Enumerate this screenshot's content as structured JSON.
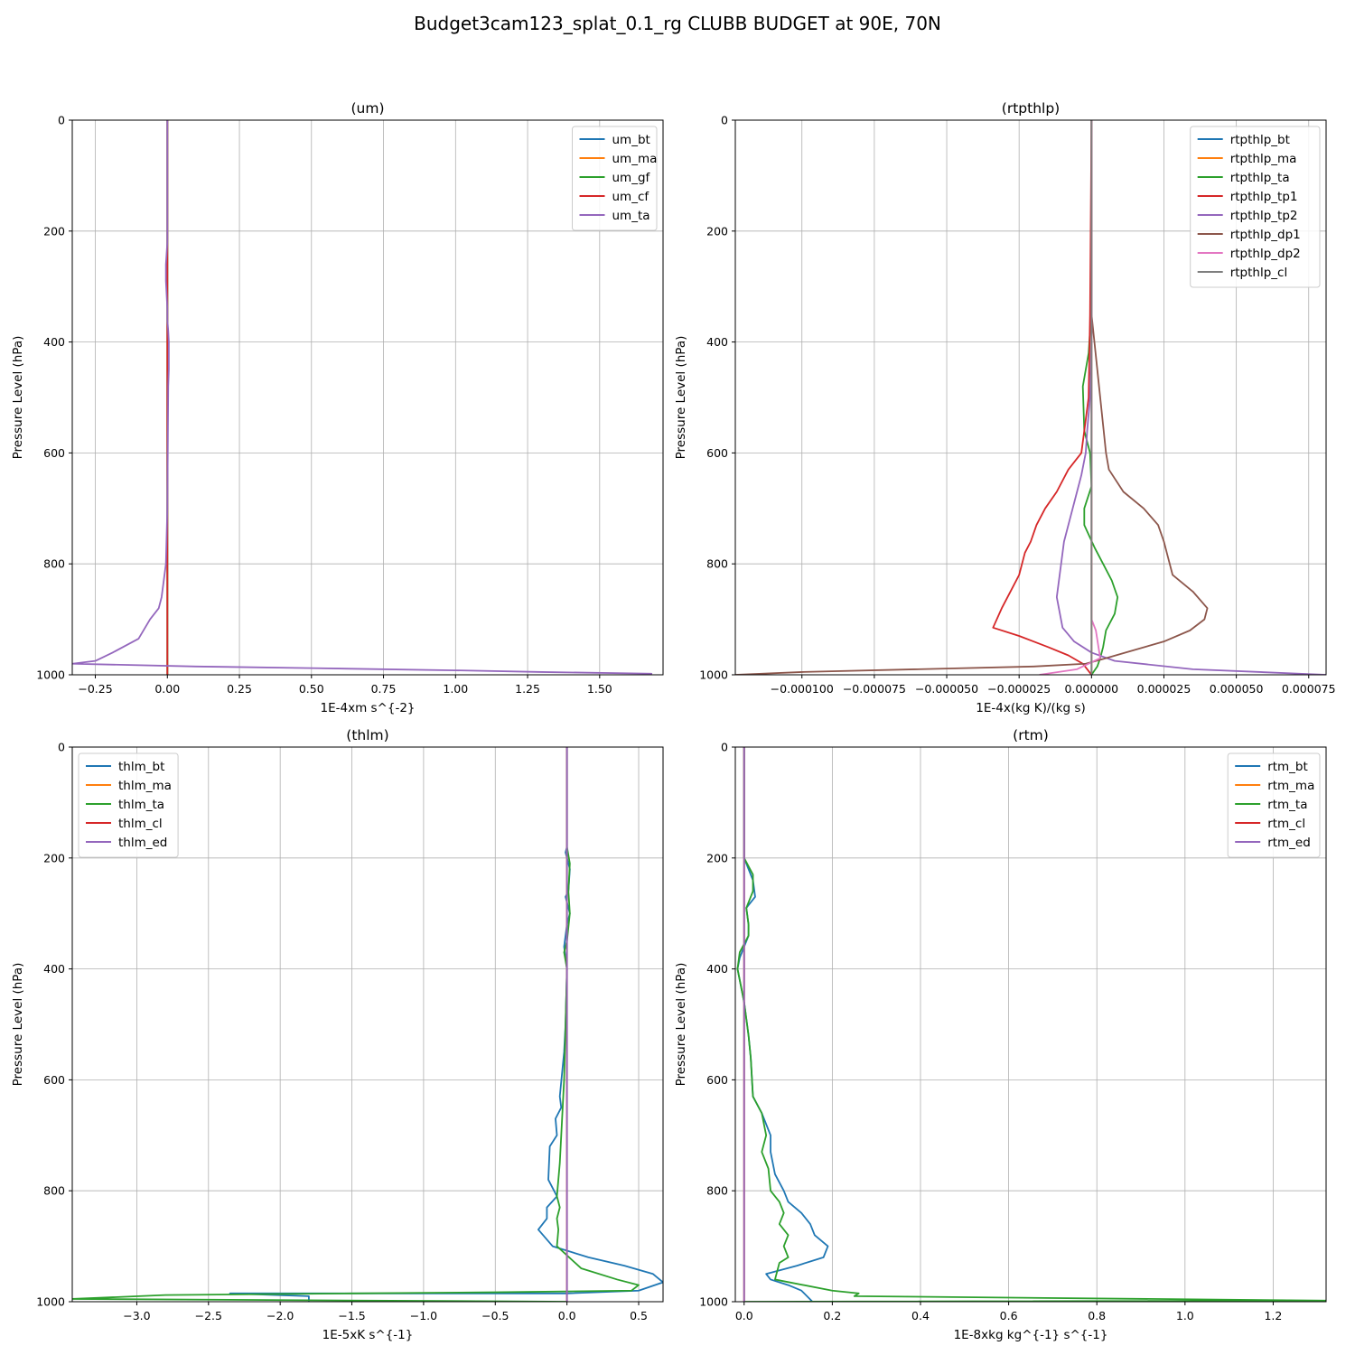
{
  "figure_title": "Budget3cam123_splat_0.1_rg CLUBB BUDGET at 90E, 70N",
  "chart_data": [
    {
      "type": "line",
      "title": "(um)",
      "xlabel": "1E-4xm s^{-2}",
      "ylabel": "Pressure Level (hPa)",
      "xlim": [
        -0.33,
        1.72
      ],
      "ylim": [
        1000,
        0
      ],
      "xticks": [
        -0.25,
        0.0,
        0.25,
        0.5,
        0.75,
        1.0,
        1.25,
        1.5
      ],
      "xtick_labels": [
        "−0.25",
        "0.00",
        "0.25",
        "0.50",
        "0.75",
        "1.00",
        "1.25",
        "1.50"
      ],
      "yticks": [
        0,
        200,
        400,
        600,
        800,
        1000
      ],
      "ytick_labels": [
        "0",
        "200",
        "400",
        "600",
        "800",
        "1000"
      ],
      "grid": true,
      "legend_position": "top-right",
      "series": [
        {
          "name": "um_bt",
          "color": "#1f77b4",
          "x": [
            0,
            0,
            0,
            0,
            0,
            0
          ],
          "y": [
            0,
            250,
            500,
            750,
            900,
            1000
          ]
        },
        {
          "name": "um_ma",
          "color": "#ff7f0e",
          "x": [
            0,
            0,
            0,
            0,
            0,
            0
          ],
          "y": [
            0,
            250,
            500,
            750,
            900,
            1000
          ]
        },
        {
          "name": "um_gf",
          "color": "#2ca02c",
          "x": [
            0,
            0,
            0,
            0,
            0,
            0
          ],
          "y": [
            0,
            250,
            500,
            750,
            900,
            1000
          ]
        },
        {
          "name": "um_cf",
          "color": "#d62728",
          "x": [
            0,
            0,
            0,
            0,
            0,
            0
          ],
          "y": [
            0,
            250,
            500,
            750,
            900,
            1000
          ]
        },
        {
          "name": "um_ta",
          "color": "#9467bd",
          "x": [
            0,
            0,
            -0.005,
            -0.005,
            0,
            0,
            0.003,
            0.005,
            0.005,
            0.003,
            0.002,
            0,
            -0.005,
            -0.02,
            -0.03,
            -0.06,
            -0.1,
            -0.19,
            -0.25,
            -0.33,
            -0.33,
            0.1,
            0.5,
            1.0,
            1.3,
            1.68,
            1.65
          ],
          "y": [
            0,
            220,
            260,
            290,
            340,
            360,
            380,
            400,
            450,
            480,
            550,
            700,
            800,
            860,
            880,
            900,
            935,
            960,
            975,
            980,
            980,
            985,
            988,
            992,
            995,
            998,
            1000
          ]
        }
      ]
    },
    {
      "type": "line",
      "title": "(rtpthlp)",
      "xlabel": "1E-4x(kg K)/(kg s)",
      "ylabel": "Pressure Level (hPa)",
      "xlim": [
        -0.000123,
        8.1e-05
      ],
      "ylim": [
        1000,
        0
      ],
      "xticks": [
        -0.0001,
        -7.5e-05,
        -5e-05,
        -2.5e-05,
        0.0,
        2.5e-05,
        5e-05,
        7.5e-05
      ],
      "xtick_labels": [
        "−0.000100",
        "−0.000075",
        "−0.000050",
        "−0.000025",
        "0.000000",
        "0.000025",
        "0.000050",
        "0.000075"
      ],
      "yticks": [
        0,
        200,
        400,
        600,
        800,
        1000
      ],
      "ytick_labels": [
        "0",
        "200",
        "400",
        "600",
        "800",
        "1000"
      ],
      "grid": true,
      "legend_position": "top-right",
      "series": [
        {
          "name": "rtpthlp_bt",
          "color": "#1f77b4",
          "x": [
            0,
            0,
            0,
            0,
            0
          ],
          "y": [
            0,
            250,
            500,
            750,
            1000
          ]
        },
        {
          "name": "rtpthlp_ma",
          "color": "#ff7f0e",
          "x": [
            0,
            0,
            0,
            0,
            0
          ],
          "y": [
            0,
            250,
            500,
            750,
            1000
          ]
        },
        {
          "name": "rtpthlp_ta",
          "color": "#2ca02c",
          "x": [
            0,
            0,
            -5e-07,
            -1e-06,
            -3e-06,
            -2.5e-06,
            -5e-07,
            0,
            -2.5e-06,
            -2.5e-06,
            1e-06,
            4e-06,
            7e-06,
            9e-06,
            8e-06,
            5e-06,
            4e-06,
            3e-06,
            2e-06,
            0
          ],
          "y": [
            0,
            300,
            380,
            420,
            480,
            560,
            600,
            660,
            700,
            730,
            770,
            800,
            830,
            860,
            890,
            920,
            950,
            970,
            985,
            1000
          ]
        },
        {
          "name": "rtpthlp_tp1",
          "color": "#d62728",
          "x": [
            0,
            -5e-07,
            -1e-06,
            -2.5e-06,
            -3.5e-06,
            -8e-06,
            -1.2e-05,
            -1.6e-05,
            -1.9e-05,
            -2.1e-05,
            -2.3e-05,
            -2.5e-05,
            -2.8e-05,
            -3.1e-05,
            -3.4e-05,
            -2.5e-05,
            -1.5e-05,
            -8e-06,
            -3e-06,
            0
          ],
          "y": [
            0,
            350,
            500,
            560,
            600,
            630,
            670,
            700,
            730,
            760,
            780,
            820,
            850,
            880,
            915,
            930,
            950,
            965,
            980,
            1000
          ]
        },
        {
          "name": "rtpthlp_tp2",
          "color": "#9467bd",
          "x": [
            0,
            0,
            -5e-07,
            -1.5e-06,
            -2e-06,
            -3.5e-06,
            -5.5e-06,
            -7.5e-06,
            -9.5e-06,
            -1.05e-05,
            -1.2e-05,
            -1e-05,
            -6e-06,
            0,
            8e-06,
            3.5e-05,
            8.1e-05
          ],
          "y": [
            0,
            400,
            500,
            560,
            600,
            640,
            680,
            720,
            760,
            800,
            860,
            915,
            940,
            960,
            975,
            990,
            1000
          ]
        },
        {
          "name": "rtpthlp_dp1",
          "color": "#8c564b",
          "x": [
            0,
            0,
            1e-06,
            3e-06,
            4e-06,
            5e-06,
            6e-06,
            1.1e-05,
            1.8e-05,
            2.3e-05,
            2.5e-05,
            2.6e-05,
            2.8e-05,
            3.5e-05,
            4e-05,
            3.9e-05,
            3.4e-05,
            2.5e-05,
            1.5e-05,
            5e-06,
            -2e-06,
            -2e-05,
            -0.0001,
            -0.000123
          ],
          "y": [
            0,
            350,
            400,
            500,
            550,
            600,
            630,
            670,
            700,
            730,
            760,
            780,
            820,
            850,
            880,
            900,
            920,
            940,
            955,
            970,
            980,
            985,
            995,
            1000
          ]
        },
        {
          "name": "rtpthlp_dp2",
          "color": "#e377c2",
          "x": [
            0,
            0,
            1.5e-06,
            3e-06,
            -5e-06,
            -1.8e-05
          ],
          "y": [
            0,
            900,
            920,
            970,
            990,
            1000
          ]
        },
        {
          "name": "rtpthlp_cl",
          "color": "#7f7f7f",
          "x": [
            0,
            0,
            0,
            0,
            0
          ],
          "y": [
            0,
            250,
            500,
            750,
            1000
          ]
        }
      ]
    },
    {
      "type": "line",
      "title": "(thlm)",
      "xlabel": "1E-5xK s^{-1}",
      "ylabel": "Pressure Level (hPa)",
      "xlim": [
        -3.45,
        0.67
      ],
      "ylim": [
        1000,
        0
      ],
      "xticks": [
        -3.0,
        -2.5,
        -2.0,
        -1.5,
        -1.0,
        -0.5,
        0.0,
        0.5
      ],
      "xtick_labels": [
        "−3.0",
        "−2.5",
        "−2.0",
        "−1.5",
        "−1.0",
        "−0.5",
        "0.0",
        "0.5"
      ],
      "yticks": [
        0,
        200,
        400,
        600,
        800,
        1000
      ],
      "ytick_labels": [
        "0",
        "200",
        "400",
        "600",
        "800",
        "1000"
      ],
      "grid": true,
      "legend_position": "top-left",
      "series": [
        {
          "name": "thlm_bt",
          "color": "#1f77b4",
          "x": [
            0,
            0,
            -0.01,
            0.02,
            0.01,
            -0.01,
            0.02,
            0.0,
            -0.02,
            0.0,
            -0.01,
            -0.02,
            -0.05,
            -0.04,
            -0.08,
            -0.07,
            -0.12,
            -0.13,
            -0.07,
            -0.14,
            -0.14,
            -0.2,
            -0.1,
            0.15,
            0.4,
            0.6,
            0.67,
            0.5,
            0.0,
            -1.0,
            -2.0,
            -2.35,
            -1.8,
            -1.8
          ],
          "y": [
            0,
            180,
            190,
            220,
            260,
            270,
            300,
            320,
            360,
            400,
            500,
            550,
            630,
            650,
            670,
            700,
            720,
            780,
            810,
            830,
            850,
            870,
            900,
            920,
            935,
            950,
            965,
            980,
            985,
            985,
            985,
            985,
            990,
            1000
          ]
        },
        {
          "name": "thlm_ma",
          "color": "#ff7f0e",
          "x": [
            0,
            0,
            0,
            0,
            0
          ],
          "y": [
            0,
            250,
            500,
            750,
            1000
          ]
        },
        {
          "name": "thlm_ta",
          "color": "#2ca02c",
          "x": [
            0,
            0,
            0.02,
            0.01,
            0.02,
            0.0,
            -0.02,
            0.0,
            -0.01,
            -0.02,
            -0.03,
            -0.04,
            -0.05,
            -0.06,
            -0.07,
            -0.05,
            -0.07,
            -0.06,
            -0.07,
            0.1,
            0.35,
            0.5,
            0.45,
            -0.5,
            -1.5,
            -2.8,
            -3.45,
            0.0
          ],
          "y": [
            0,
            180,
            210,
            260,
            300,
            350,
            370,
            400,
            500,
            600,
            650,
            700,
            750,
            780,
            810,
            830,
            850,
            870,
            900,
            940,
            960,
            970,
            980,
            983,
            985,
            988,
            995,
            1000
          ]
        },
        {
          "name": "thlm_cl",
          "color": "#d62728",
          "x": [
            0,
            0,
            0,
            0,
            0
          ],
          "y": [
            0,
            250,
            500,
            750,
            1000
          ]
        },
        {
          "name": "thlm_ed",
          "color": "#9467bd",
          "x": [
            0,
            0,
            0,
            0,
            0
          ],
          "y": [
            0,
            250,
            500,
            750,
            1000
          ]
        }
      ]
    },
    {
      "type": "line",
      "title": "(rtm)",
      "xlabel": "1E-8xkg kg^{-1} s^{-1}",
      "ylabel": "Pressure Level (hPa)",
      "xlim": [
        -0.02,
        1.32
      ],
      "ylim": [
        1000,
        0
      ],
      "xticks": [
        0.0,
        0.2,
        0.4,
        0.6,
        0.8,
        1.0,
        1.2
      ],
      "xtick_labels": [
        "0.0",
        "0.2",
        "0.4",
        "0.6",
        "0.8",
        "1.0",
        "1.2"
      ],
      "yticks": [
        0,
        200,
        400,
        600,
        800,
        1000
      ],
      "ytick_labels": [
        "0",
        "200",
        "400",
        "600",
        "800",
        "1000"
      ],
      "grid": true,
      "legend_position": "top-right",
      "series": [
        {
          "name": "rtm_bt",
          "color": "#1f77b4",
          "x": [
            0,
            0,
            0.02,
            0.025,
            0.005,
            0.01,
            0.01,
            -0.01,
            -0.015,
            0.0,
            0.01,
            0.015,
            0.02,
            0.04,
            0.06,
            0.06,
            0.07,
            0.09,
            0.1,
            0.13,
            0.15,
            0.16,
            0.19,
            0.18,
            0.12,
            0.05,
            0.06,
            0.1,
            0.13,
            0.155
          ],
          "y": [
            0,
            200,
            240,
            270,
            290,
            320,
            340,
            380,
            400,
            460,
            520,
            560,
            630,
            660,
            700,
            730,
            770,
            800,
            820,
            840,
            860,
            880,
            900,
            920,
            935,
            950,
            960,
            970,
            980,
            1000
          ]
        },
        {
          "name": "rtm_ma",
          "color": "#ff7f0e",
          "x": [
            0,
            0,
            0,
            0,
            0
          ],
          "y": [
            0,
            250,
            500,
            750,
            1000
          ]
        },
        {
          "name": "rtm_ta",
          "color": "#2ca02c",
          "x": [
            0,
            0,
            0.02,
            0.02,
            0.005,
            0.01,
            0.01,
            -0.01,
            -0.015,
            0.0,
            0.01,
            0.015,
            0.02,
            0.04,
            0.05,
            0.04,
            0.055,
            0.06,
            0.08,
            0.09,
            0.08,
            0.1,
            0.09,
            0.1,
            0.08,
            0.07,
            0.2,
            0.26,
            0.25,
            1.32,
            0.0
          ],
          "y": [
            0,
            200,
            230,
            260,
            290,
            320,
            340,
            370,
            400,
            460,
            520,
            560,
            630,
            660,
            700,
            730,
            760,
            800,
            820,
            840,
            860,
            880,
            900,
            920,
            930,
            960,
            980,
            985,
            990,
            998,
            1000
          ]
        },
        {
          "name": "rtm_cl",
          "color": "#d62728",
          "x": [
            0,
            0,
            0,
            0,
            0
          ],
          "y": [
            0,
            250,
            500,
            750,
            1000
          ]
        },
        {
          "name": "rtm_ed",
          "color": "#9467bd",
          "x": [
            0,
            0,
            0,
            0,
            0
          ],
          "y": [
            0,
            250,
            500,
            750,
            1000
          ]
        }
      ]
    }
  ]
}
